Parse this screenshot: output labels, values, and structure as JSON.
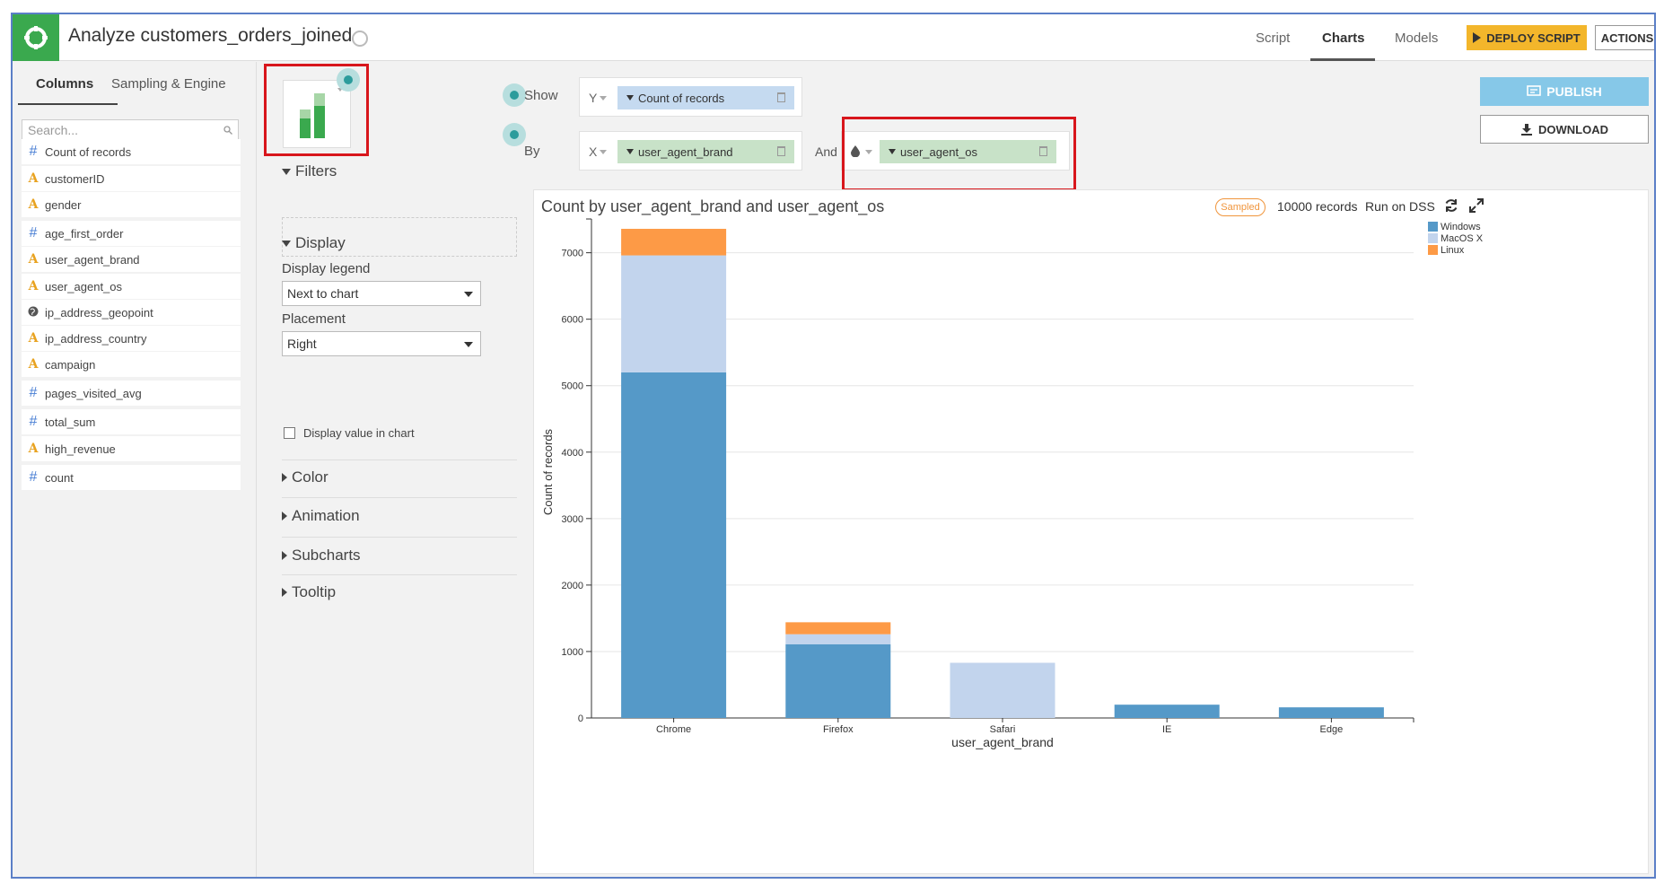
{
  "app": {
    "title": "Analyze customers_orders_joined",
    "nav_tabs": [
      "Script",
      "Charts",
      "Models"
    ],
    "deploy_label": "DEPLOY SCRIPT",
    "actions_label": "ACTIONS"
  },
  "sidebar": {
    "tabs": [
      "Columns",
      "Sampling & Engine"
    ],
    "search_placeholder": "Search...",
    "columns": [
      {
        "type": "#",
        "kind": "num",
        "name": "Count of records"
      },
      {
        "type": "A",
        "kind": "alpha",
        "name": "customerID"
      },
      {
        "type": "A",
        "kind": "alpha",
        "name": "gender"
      },
      {
        "type": "#",
        "kind": "num",
        "name": "age_first_order"
      },
      {
        "type": "A",
        "kind": "alpha",
        "name": "user_agent_brand"
      },
      {
        "type": "A",
        "kind": "alpha",
        "name": "user_agent_os"
      },
      {
        "type": "globe",
        "kind": "geo",
        "name": "ip_address_geopoint"
      },
      {
        "type": "A",
        "kind": "alpha",
        "name": "ip_address_country"
      },
      {
        "type": "A",
        "kind": "alpha",
        "name": "campaign"
      },
      {
        "type": "#",
        "kind": "num",
        "name": "pages_visited_avg"
      },
      {
        "type": "#",
        "kind": "num",
        "name": "total_sum"
      },
      {
        "type": "A",
        "kind": "alpha",
        "name": "high_revenue"
      },
      {
        "type": "#",
        "kind": "num",
        "name": "count"
      }
    ]
  },
  "options": {
    "filters": "Filters",
    "display": "Display",
    "display_legend_label": "Display legend",
    "display_legend_value": "Next to chart",
    "placement_label": "Placement",
    "placement_value": "Right",
    "display_value_label": "Display value in chart",
    "color": "Color",
    "animation": "Animation",
    "subcharts": "Subcharts",
    "tooltip": "Tooltip"
  },
  "shelves": {
    "show_label": "Show",
    "by_label": "By",
    "and_label": "And",
    "y_tag": "Y",
    "x_tag": "X",
    "y_pill": "Count of records",
    "x_pill": "user_agent_brand",
    "color_pill": "user_agent_os"
  },
  "buttons": {
    "publish": "PUBLISH",
    "download": "DOWNLOAD"
  },
  "chart_header": {
    "title": "Count by user_agent_brand and user_agent_os",
    "sampled": "Sampled",
    "records": "10000 records",
    "run": "Run on DSS"
  },
  "colors": {
    "windows": "#5599c8",
    "macos": "#c2d4ed",
    "linux": "#fd9a46",
    "accent": "#3aa94e"
  },
  "chart_data": {
    "type": "bar",
    "stacked": true,
    "categories": [
      "Chrome",
      "Firefox",
      "Safari",
      "IE",
      "Edge"
    ],
    "series": [
      {
        "name": "Windows",
        "values": [
          5200,
          1110,
          0,
          200,
          160
        ]
      },
      {
        "name": "MacOS X",
        "values": [
          1760,
          150,
          830,
          0,
          0
        ]
      },
      {
        "name": "Linux",
        "values": [
          400,
          180,
          0,
          0,
          0
        ]
      }
    ],
    "xlabel": "user_agent_brand",
    "ylabel": "Count of records",
    "ylim": [
      0,
      7400
    ],
    "yticks": [
      0,
      1000,
      2000,
      3000,
      4000,
      5000,
      6000,
      7000
    ],
    "grid": true,
    "legend": "top-right"
  }
}
